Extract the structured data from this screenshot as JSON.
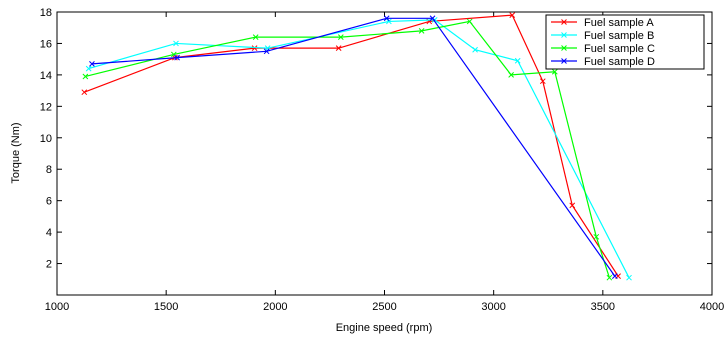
{
  "chart_data": {
    "type": "line",
    "title": "",
    "xlabel": "Engine speed (rpm)",
    "ylabel": "Torque (Nm)",
    "xlim": [
      1000,
      4000
    ],
    "ylim": [
      0,
      18
    ],
    "xticks": [
      1000,
      1500,
      2000,
      2500,
      3000,
      3500,
      4000
    ],
    "yticks": [
      2,
      4,
      6,
      8,
      10,
      12,
      14,
      16,
      18
    ],
    "grid": false,
    "legend_position": "top-right",
    "marker": "x",
    "series": [
      {
        "name": "Fuel sample A",
        "color": "#ff0000",
        "x": [
          1125,
          1540,
          1905,
          2290,
          2705,
          3085,
          3225,
          3360,
          3570
        ],
        "y": [
          12.9,
          15.1,
          15.7,
          15.7,
          17.4,
          17.8,
          13.6,
          5.7,
          1.2
        ]
      },
      {
        "name": "Fuel sample B",
        "color": "#00ffff",
        "x": [
          1145,
          1545,
          1965,
          2520,
          2730,
          2915,
          3110,
          3620
        ],
        "y": [
          14.4,
          16.0,
          15.7,
          17.4,
          17.5,
          15.6,
          14.9,
          1.1
        ]
      },
      {
        "name": "Fuel sample C",
        "color": "#00ff00",
        "x": [
          1130,
          1535,
          1910,
          2300,
          2670,
          2890,
          3080,
          3280,
          3470,
          3530
        ],
        "y": [
          13.9,
          15.3,
          16.4,
          16.4,
          16.8,
          17.4,
          14.0,
          14.2,
          3.7,
          1.1
        ]
      },
      {
        "name": "Fuel sample D",
        "color": "#0000ff",
        "x": [
          1160,
          1550,
          1960,
          2510,
          2720,
          3555
        ],
        "y": [
          14.7,
          15.1,
          15.5,
          17.6,
          17.6,
          1.2
        ]
      }
    ]
  }
}
